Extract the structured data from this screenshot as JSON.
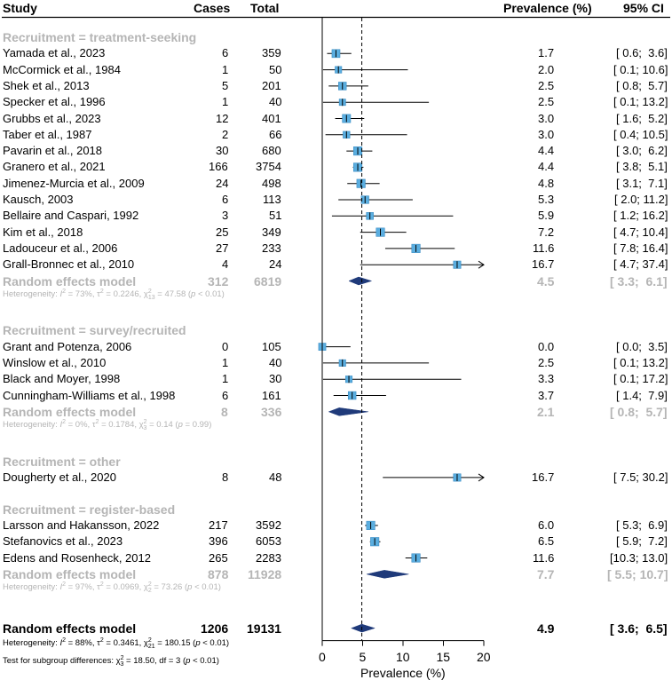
{
  "headers": {
    "study": "Study",
    "cases": "Cases",
    "total": "Total",
    "prevalence": "Prevalence (%)",
    "ci": "95% CI"
  },
  "groups": [
    {
      "label": "Recruitment = treatment-seeking",
      "studies": [
        {
          "study": "Yamada et al., 2023",
          "cases": "6",
          "total": "359",
          "prev": 1.7,
          "lo": 0.6,
          "hi": 3.6,
          "prev_text": "1.7",
          "ci_text": "[ 0.6;  3.6]",
          "weight": 0.9
        },
        {
          "study": "McCormick et al., 1984",
          "cases": "1",
          "total": "50",
          "prev": 2.0,
          "lo": 0.1,
          "hi": 10.6,
          "prev_text": "2.0",
          "ci_text": "[ 0.1; 10.6]",
          "weight": 0.55
        },
        {
          "study": "Shek et al., 2013",
          "cases": "5",
          "total": "201",
          "prev": 2.5,
          "lo": 0.8,
          "hi": 5.7,
          "prev_text": "2.5",
          "ci_text": "[ 0.8;  5.7]",
          "weight": 0.85
        },
        {
          "study": "Specker et al., 1996",
          "cases": "1",
          "total": "40",
          "prev": 2.5,
          "lo": 0.1,
          "hi": 13.2,
          "prev_text": "2.5",
          "ci_text": "[ 0.1; 13.2]",
          "weight": 0.5
        },
        {
          "study": "Grubbs et al., 2023",
          "cases": "12",
          "total": "401",
          "prev": 3.0,
          "lo": 1.6,
          "hi": 5.2,
          "prev_text": "3.0",
          "ci_text": "[ 1.6;  5.2]",
          "weight": 0.95
        },
        {
          "study": "Taber et al., 1987",
          "cases": "2",
          "total": "66",
          "prev": 3.0,
          "lo": 0.4,
          "hi": 10.5,
          "prev_text": "3.0",
          "ci_text": "[ 0.4; 10.5]",
          "weight": 0.6
        },
        {
          "study": "Pavarin et al., 2018",
          "cases": "30",
          "total": "680",
          "prev": 4.4,
          "lo": 3.0,
          "hi": 6.2,
          "prev_text": "4.4",
          "ci_text": "[ 3.0;  6.2]",
          "weight": 1.0
        },
        {
          "study": "Granero et al., 2021",
          "cases": "166",
          "total": "3754",
          "prev": 4.4,
          "lo": 3.8,
          "hi": 5.1,
          "prev_text": "4.4",
          "ci_text": "[ 3.8;  5.1]",
          "weight": 1.0
        },
        {
          "study": "Jimenez-Murcia et al., 2009",
          "cases": "24",
          "total": "498",
          "prev": 4.8,
          "lo": 3.1,
          "hi": 7.1,
          "prev_text": "4.8",
          "ci_text": "[ 3.1;  7.1]",
          "weight": 1.0
        },
        {
          "study": "Kausch, 2003",
          "cases": "6",
          "total": "113",
          "prev": 5.3,
          "lo": 2.0,
          "hi": 11.2,
          "prev_text": "5.3",
          "ci_text": "[ 2.0; 11.2]",
          "weight": 0.8
        },
        {
          "study": "Bellaire and Caspari, 1992",
          "cases": "3",
          "total": "51",
          "prev": 5.9,
          "lo": 1.2,
          "hi": 16.2,
          "prev_text": "5.9",
          "ci_text": "[ 1.2; 16.2]",
          "weight": 0.65
        },
        {
          "study": "Kim et al., 2018",
          "cases": "25",
          "total": "349",
          "prev": 7.2,
          "lo": 4.7,
          "hi": 10.4,
          "prev_text": "7.2",
          "ci_text": "[ 4.7; 10.4]",
          "weight": 1.0
        },
        {
          "study": "Ladouceur et al., 2006",
          "cases": "27",
          "total": "233",
          "prev": 11.6,
          "lo": 7.8,
          "hi": 16.4,
          "prev_text": "11.6",
          "ci_text": "[ 7.8; 16.4]",
          "weight": 1.0
        },
        {
          "study": "Grall-Bronnec et al., 2010",
          "cases": "4",
          "total": "24",
          "prev": 16.7,
          "lo": 4.7,
          "hi": 37.4,
          "prev_text": "16.7",
          "ci_text": "[ 4.7; 37.4]",
          "weight": 0.75
        }
      ],
      "pooled": {
        "label": "Random effects model",
        "cases": "312",
        "total": "6819",
        "prev": 4.5,
        "lo": 3.3,
        "hi": 6.1,
        "prev_text": "4.5",
        "ci_text": "[ 3.3;  6.1]"
      },
      "het_parts": [
        "Heterogeneity: ",
        "I",
        "2",
        " = 73%, τ",
        "2",
        " = 0.2246, χ",
        "2",
        "13",
        " = 47.58 (",
        "p",
        " < 0.01)"
      ]
    },
    {
      "label": "Recruitment = survey/recruited",
      "studies": [
        {
          "study": "Grant and Potenza, 2006",
          "cases": "0",
          "total": "105",
          "prev": 0.0,
          "lo": 0.0,
          "hi": 3.5,
          "prev_text": "0.0",
          "ci_text": "[ 0.0;  3.5]",
          "weight": 0.7
        },
        {
          "study": "Winslow et al., 2010",
          "cases": "1",
          "total": "40",
          "prev": 2.5,
          "lo": 0.1,
          "hi": 13.2,
          "prev_text": "2.5",
          "ci_text": "[ 0.1; 13.2]",
          "weight": 0.55
        },
        {
          "study": "Black and Moyer, 1998",
          "cases": "1",
          "total": "30",
          "prev": 3.3,
          "lo": 0.1,
          "hi": 17.2,
          "prev_text": "3.3",
          "ci_text": "[ 0.1; 17.2]",
          "weight": 0.55
        },
        {
          "study": "Cunningham-Williams et al., 1998",
          "cases": "6",
          "total": "161",
          "prev": 3.7,
          "lo": 1.4,
          "hi": 7.9,
          "prev_text": "3.7",
          "ci_text": "[ 1.4;  7.9]",
          "weight": 0.85
        }
      ],
      "pooled": {
        "label": "Random effects model",
        "cases": "8",
        "total": "336",
        "prev": 2.1,
        "lo": 0.8,
        "hi": 5.7,
        "prev_text": "2.1",
        "ci_text": "[ 0.8;  5.7]"
      },
      "het_parts": [
        "Heterogeneity: ",
        "I",
        "2",
        " = 0%, τ",
        "2",
        " = 0.1784, χ",
        "2",
        "3",
        " = 0.14 (",
        "p",
        " = 0.99)"
      ]
    },
    {
      "label": "Recruitment = other",
      "studies": [
        {
          "study": "Dougherty et al., 2020",
          "cases": "8",
          "total": "48",
          "prev": 16.7,
          "lo": 7.5,
          "hi": 30.2,
          "prev_text": "16.7",
          "ci_text": "[ 7.5; 30.2]",
          "weight": 0.75
        }
      ],
      "pooled": null,
      "het_parts": null
    },
    {
      "label": "Recruitment = register-based",
      "studies": [
        {
          "study": "Larsson and Hakansson, 2022",
          "cases": "217",
          "total": "3592",
          "prev": 6.0,
          "lo": 5.3,
          "hi": 6.9,
          "prev_text": "6.0",
          "ci_text": "[ 5.3;  6.9]",
          "weight": 1.0
        },
        {
          "study": "Stefanovics et al., 2023",
          "cases": "396",
          "total": "6053",
          "prev": 6.5,
          "lo": 5.9,
          "hi": 7.2,
          "prev_text": "6.5",
          "ci_text": "[ 5.9;  7.2]",
          "weight": 1.0
        },
        {
          "study": "Edens and Rosenheck, 2012",
          "cases": "265",
          "total": "2283",
          "prev": 11.6,
          "lo": 10.3,
          "hi": 13.0,
          "prev_text": "11.6",
          "ci_text": "[10.3; 13.0]",
          "weight": 1.0
        }
      ],
      "pooled": {
        "label": "Random effects model",
        "cases": "878",
        "total": "11928",
        "prev": 7.7,
        "lo": 5.5,
        "hi": 10.7,
        "prev_text": "7.7",
        "ci_text": "[ 5.5; 10.7]"
      },
      "het_parts": [
        "Heterogeneity: ",
        "I",
        "2",
        " = 97%, τ",
        "2",
        " = 0.0969, χ",
        "2",
        "2",
        " = 73.26 (",
        "p",
        " < 0.01)"
      ]
    }
  ],
  "overall": {
    "label": "Random effects model",
    "cases": "1206",
    "total": "19131",
    "prev": 4.9,
    "lo": 3.6,
    "hi": 6.5,
    "prev_text": "4.9",
    "ci_text": "[ 3.6;  6.5]"
  },
  "overall_het_parts": [
    "Heterogeneity: ",
    "I",
    "2",
    " = 88%, τ",
    "2",
    " = 0.3461, χ",
    "2",
    "21",
    " = 180.15 (",
    "p",
    " < 0.01)"
  ],
  "subgroup_test_parts": [
    "Test for subgroup differences: χ",
    "2",
    "3",
    " = 18.50, df = 3 (",
    "p",
    " < 0.01)"
  ],
  "chart_data": {
    "type": "forest",
    "xlabel": "Prevalence (%)",
    "xlim": [
      0,
      20
    ],
    "xticks": [
      0,
      5,
      10,
      15,
      20
    ],
    "reference_line": 4.9,
    "colors": {
      "square": "#5aaee0",
      "square_border": "#3d8ec4",
      "diamond": "#1f3a7a",
      "ci_line": "#000000"
    }
  }
}
